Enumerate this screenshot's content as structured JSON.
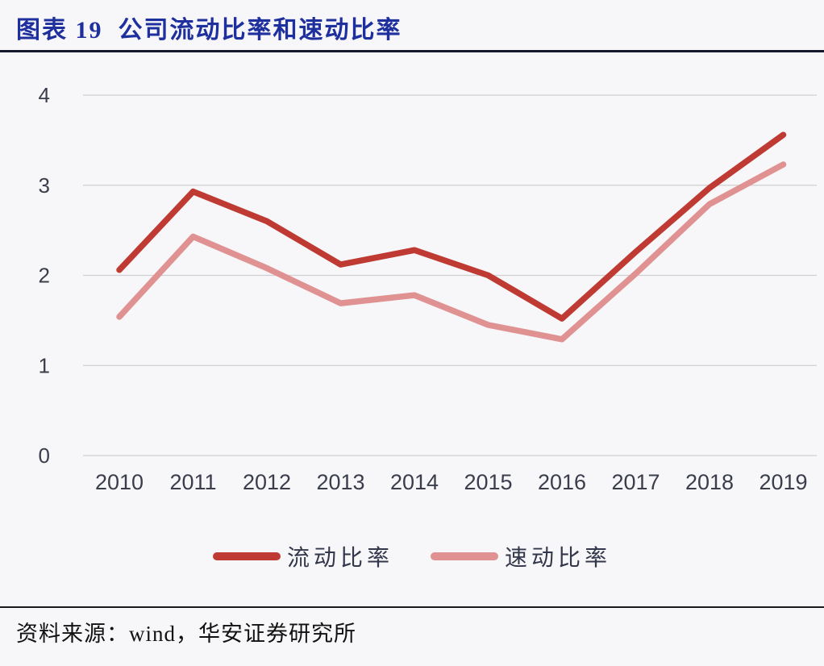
{
  "header": {
    "title": "图表 19  公司流动比率和速动比率",
    "title_color": "#1e2f9e"
  },
  "footer": {
    "source": "资料来源：wind，华安证券研究所"
  },
  "chart_data": {
    "type": "line",
    "title": "公司流动比率和速动比率",
    "x": [
      "2010",
      "2011",
      "2012",
      "2013",
      "2014",
      "2015",
      "2016",
      "2017",
      "2018",
      "2019"
    ],
    "series": [
      {
        "name": "流动比率",
        "color": "#be3a32",
        "values": [
          2.06,
          2.93,
          2.6,
          2.12,
          2.28,
          2.0,
          1.52,
          2.26,
          2.97,
          3.56
        ]
      },
      {
        "name": "速动比率",
        "color": "#e09192",
        "values": [
          1.54,
          2.43,
          2.08,
          1.69,
          1.78,
          1.45,
          1.29,
          2.02,
          2.79,
          3.23
        ]
      }
    ],
    "ylim": [
      0,
      4
    ],
    "yticks": [
      0,
      1,
      2,
      3,
      4
    ],
    "grid": true,
    "gridline_color": "#cfcfd4",
    "tick_label_color": "#3a3d4c",
    "legend_position": "bottom"
  }
}
